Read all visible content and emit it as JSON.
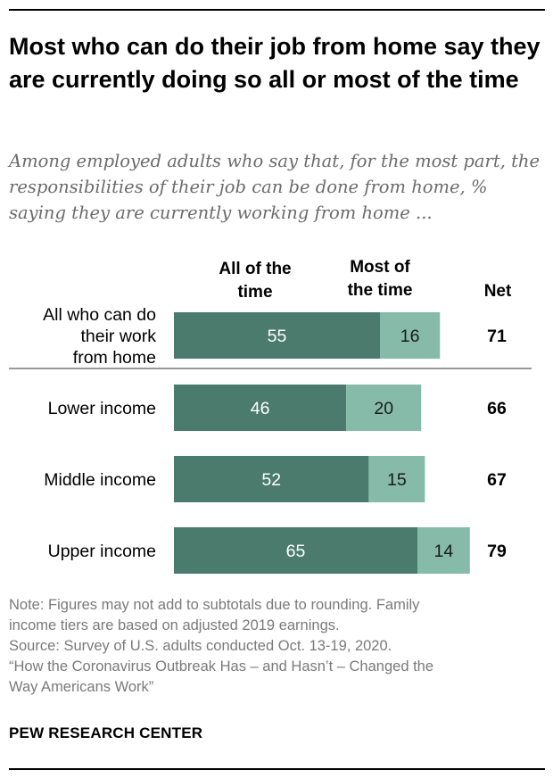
{
  "title": "Most who can do their job from home say they are currently doing so all or most of the time",
  "subtitle": "Among employed adults who say that, for the most part, the responsibilities of their job can be done from home, % saying they are currently working from home ...",
  "colors": {
    "all_of_time": "#4a7b6c",
    "most_of_time": "#86bba9",
    "separator": "#999999"
  },
  "chart_data": {
    "type": "bar",
    "stacked": true,
    "orientation": "horizontal",
    "categories": [
      [
        "All who can do",
        "their work",
        "from home"
      ],
      [
        "Lower income"
      ],
      [
        "Middle income"
      ],
      [
        "Upper income"
      ]
    ],
    "series": [
      {
        "name": [
          "All of the",
          "time"
        ],
        "values": [
          55,
          46,
          52,
          65
        ]
      },
      {
        "name": [
          "Most of",
          "the time"
        ],
        "values": [
          16,
          20,
          15,
          14
        ]
      }
    ],
    "net_label": "Net",
    "net": [
      71,
      66,
      67,
      79
    ],
    "xlim": [
      0,
      100
    ],
    "grid": false,
    "legend": "column headers above bars"
  },
  "notes": [
    "Note: Figures may not add to subtotals due to rounding. Family",
    "income tiers are based on adjusted 2019 earnings.",
    "Source: Survey of U.S. adults conducted Oct. 13-19, 2020.",
    "“How the Coronavirus Outbreak Has – and Hasn’t – Changed the",
    "Way Americans Work”"
  ],
  "source_org": "PEW RESEARCH CENTER"
}
